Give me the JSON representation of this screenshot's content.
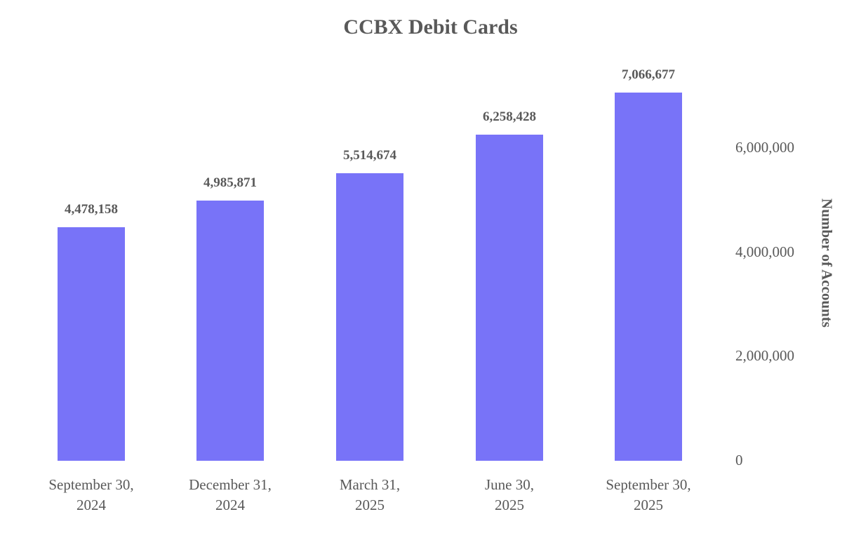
{
  "chart_data": {
    "type": "bar",
    "title": "CCBX Debit Cards",
    "xlabel": "",
    "ylabel": "Number of Accounts",
    "categories": [
      "September 30, 2024",
      "December 31, 2024",
      "March 31, 2025",
      "June 30, 2025",
      "September 30, 2025"
    ],
    "category_lines": [
      [
        "September 30,",
        "2024"
      ],
      [
        "December 31,",
        "2024"
      ],
      [
        "March 31,",
        "2025"
      ],
      [
        "June 30,",
        "2025"
      ],
      [
        "September 30,",
        "2025"
      ]
    ],
    "values": [
      4478158,
      4985871,
      5514674,
      6258428,
      7066677
    ],
    "value_labels": [
      "4,478,158",
      "4,985,871",
      "5,514,674",
      "6,258,428",
      "7,066,677"
    ],
    "ylim": [
      0,
      7200000
    ],
    "yticks": [
      0,
      2000000,
      4000000,
      6000000
    ],
    "ytick_labels": [
      "0",
      "2,000,000",
      "4,000,000",
      "6,000,000"
    ],
    "y_axis_position": "right",
    "grid": false,
    "legend": null,
    "bar_color": "#7873F8"
  }
}
